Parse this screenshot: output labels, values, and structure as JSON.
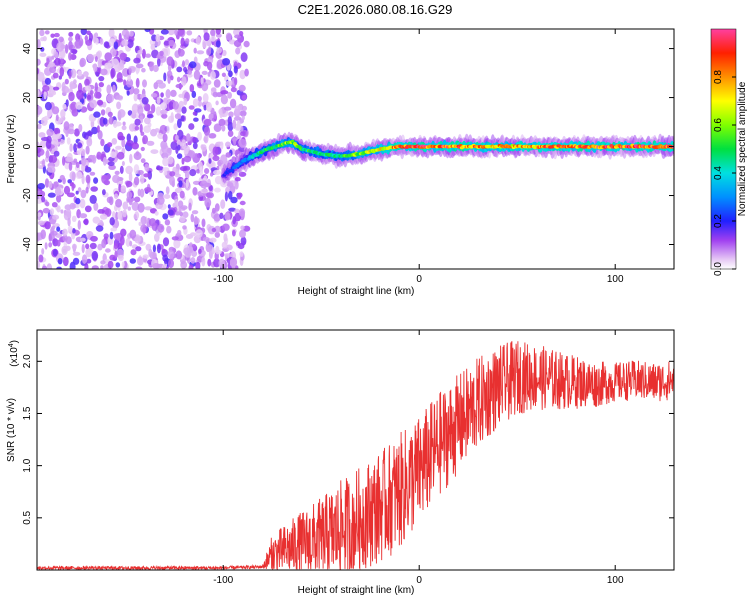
{
  "chart_data": [
    {
      "type": "heatmap",
      "title": "C2E1.2026.080.08.16.G29",
      "xlabel": "Height of straight line (km)",
      "ylabel": "Frequency (Hz)",
      "xlim": [
        -195,
        130
      ],
      "ylim": [
        -50,
        48
      ],
      "xticks": [
        -100,
        0,
        100
      ],
      "yticks": [
        -40,
        -20,
        0,
        20,
        40
      ],
      "colorbar": {
        "label": "Normalized spectral amplitude",
        "range": [
          0,
          1
        ],
        "ticks": [
          0.0,
          0.2,
          0.4,
          0.6,
          0.8
        ],
        "tick_labels": [
          "0.0",
          "0.2",
          "0.4",
          "0.6",
          "0.8"
        ]
      },
      "noise_region_x": [
        -195,
        -88
      ],
      "signal_track": {
        "x": [
          -100,
          -90,
          -80,
          -70,
          -65,
          -60,
          -50,
          -40,
          -30,
          -20,
          -10,
          0,
          20,
          40,
          60,
          80,
          100,
          130
        ],
        "freq": [
          -12,
          -6,
          -2,
          1,
          2,
          -1,
          -3,
          -4,
          -3,
          -1,
          0,
          0,
          0,
          0,
          0,
          0,
          0,
          0
        ],
        "amplitude": [
          0.2,
          0.3,
          0.5,
          0.6,
          0.65,
          0.55,
          0.5,
          0.55,
          0.65,
          0.75,
          0.9,
          0.95,
          0.9,
          0.8,
          0.85,
          0.9,
          0.95,
          0.95
        ]
      }
    },
    {
      "type": "line",
      "xlabel": "Height of straight line (km)",
      "ylabel": "SNR (10 * v/v)",
      "scale_label": "(x10",
      "scale_exponent": "4",
      "scale_suffix": ")",
      "xlim": [
        -195,
        130
      ],
      "ylim": [
        0,
        2.3
      ],
      "xticks": [
        -100,
        0,
        100
      ],
      "yticks": [
        0.5,
        1.0,
        1.5,
        2.0
      ],
      "ytick_labels": [
        "0.5",
        "1.0",
        "1.5",
        "2.0"
      ],
      "color": "#e83030",
      "trend": {
        "x": [
          -195,
          -100,
          -80,
          -75,
          -60,
          -50,
          -40,
          -30,
          -20,
          -10,
          0,
          10,
          20,
          30,
          40,
          50,
          60,
          70,
          80,
          90,
          100,
          110,
          120,
          130
        ],
        "y": [
          0.02,
          0.02,
          0.03,
          0.15,
          0.25,
          0.3,
          0.38,
          0.5,
          0.6,
          0.75,
          0.95,
          1.2,
          1.4,
          1.6,
          1.75,
          1.85,
          1.85,
          1.82,
          1.8,
          1.78,
          1.8,
          1.82,
          1.8,
          1.82
        ]
      },
      "noise_amplitude": {
        "x": [
          -195,
          -80,
          -75,
          -40,
          -10,
          20,
          60,
          100,
          130
        ],
        "amp": [
          0.01,
          0.01,
          0.12,
          0.3,
          0.35,
          0.3,
          0.2,
          0.12,
          0.12
        ]
      }
    }
  ]
}
